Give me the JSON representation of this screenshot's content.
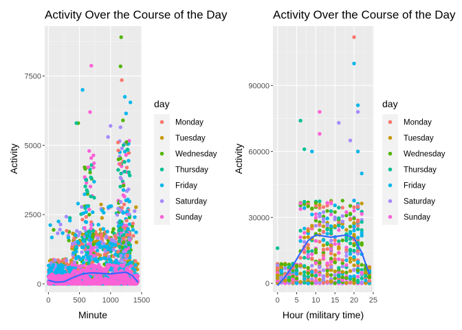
{
  "chart_data": [
    {
      "type": "scatter",
      "title": "Activity Over the Course of the Day",
      "xlabel": "Minute",
      "ylabel": "Activity",
      "xlim": [
        -60,
        1500
      ],
      "ylim": [
        -300,
        9300
      ],
      "xticks": [
        0,
        500,
        1000,
        1500
      ],
      "xtick_labels": [
        "0",
        "500",
        "1000",
        "1500"
      ],
      "yticks": [
        0,
        2500,
        5000,
        7500
      ],
      "ytick_labels": [
        "0",
        "2500",
        "5000",
        "7500"
      ],
      "grid": true,
      "legend": {
        "title": "day",
        "placement": "right",
        "entries": [
          "Monday",
          "Tuesday",
          "Wednesday",
          "Thursday",
          "Friday",
          "Saturday",
          "Sunday"
        ]
      },
      "colors": [
        "#F8766D",
        "#C49A00",
        "#53B400",
        "#00C094",
        "#00B6EB",
        "#A58AFF",
        "#FB61D7"
      ],
      "smooth_color": "#3366FF",
      "outliers": [
        {
          "x": 1170,
          "y": 8900,
          "day": "Wednesday"
        },
        {
          "x": 690,
          "y": 7870,
          "day": "Sunday"
        },
        {
          "x": 1160,
          "y": 7850,
          "day": "Wednesday"
        },
        {
          "x": 1180,
          "y": 7350,
          "day": "Monday"
        },
        {
          "x": 550,
          "y": 7000,
          "day": "Friday"
        },
        {
          "x": 1230,
          "y": 6750,
          "day": "Friday"
        },
        {
          "x": 1320,
          "y": 6550,
          "day": "Friday"
        },
        {
          "x": 670,
          "y": 6200,
          "day": "Sunday"
        },
        {
          "x": 1250,
          "y": 6150,
          "day": "Friday"
        },
        {
          "x": 1000,
          "y": 5700,
          "day": "Saturday"
        },
        {
          "x": 480,
          "y": 5800,
          "day": "Wednesday"
        },
        {
          "x": 450,
          "y": 5800,
          "day": "Thursday"
        },
        {
          "x": 1160,
          "y": 5650,
          "day": "Saturday"
        },
        {
          "x": 960,
          "y": 5300,
          "day": "Saturday"
        },
        {
          "x": 1200,
          "y": 5900,
          "day": "Wednesday"
        }
      ],
      "smooth": [
        {
          "x": 0,
          "y": 130
        },
        {
          "x": 120,
          "y": 60
        },
        {
          "x": 250,
          "y": 80
        },
        {
          "x": 400,
          "y": 230
        },
        {
          "x": 550,
          "y": 360
        },
        {
          "x": 700,
          "y": 400
        },
        {
          "x": 850,
          "y": 380
        },
        {
          "x": 1000,
          "y": 360
        },
        {
          "x": 1150,
          "y": 400
        },
        {
          "x": 1250,
          "y": 420
        },
        {
          "x": 1350,
          "y": 300
        },
        {
          "x": 1440,
          "y": 60
        }
      ]
    },
    {
      "type": "scatter",
      "title": "Activity Over the Course of the Day",
      "xlabel": "Hour (military time)",
      "ylabel": "Activity",
      "xlim": [
        -1.2,
        25.2
      ],
      "ylim": [
        -4000,
        117000
      ],
      "xticks": [
        0,
        5,
        10,
        15,
        20,
        25
      ],
      "xtick_labels": [
        "0",
        "5",
        "10",
        "15",
        "20",
        "25"
      ],
      "yticks": [
        0,
        30000,
        60000,
        90000
      ],
      "ytick_labels": [
        "0",
        "30000",
        "60000",
        "90000"
      ],
      "grid": true,
      "legend": {
        "title": "day",
        "placement": "right",
        "entries": [
          "Monday",
          "Tuesday",
          "Wednesday",
          "Thursday",
          "Friday",
          "Saturday",
          "Sunday"
        ]
      },
      "colors": [
        "#F8766D",
        "#C49A00",
        "#53B400",
        "#00C094",
        "#00B6EB",
        "#A58AFF",
        "#FB61D7"
      ],
      "smooth_color": "#3366FF",
      "outliers": [
        {
          "x": 20,
          "y": 112000,
          "day": "Monday"
        },
        {
          "x": 20,
          "y": 100000,
          "day": "Friday"
        },
        {
          "x": 21,
          "y": 81000,
          "day": "Friday"
        },
        {
          "x": 11,
          "y": 78000,
          "day": "Sunday"
        },
        {
          "x": 6,
          "y": 74000,
          "day": "Thursday"
        },
        {
          "x": 16,
          "y": 73000,
          "day": "Saturday"
        },
        {
          "x": 21,
          "y": 78000,
          "day": "Saturday"
        },
        {
          "x": 11,
          "y": 68000,
          "day": "Sunday"
        },
        {
          "x": 7,
          "y": 61000,
          "day": "Thursday"
        },
        {
          "x": 19,
          "y": 65000,
          "day": "Saturday"
        },
        {
          "x": 21,
          "y": 60000,
          "day": "Friday"
        },
        {
          "x": 9,
          "y": 60000,
          "day": "Friday"
        },
        {
          "x": 22,
          "y": 50000,
          "day": "Friday"
        },
        {
          "x": 0,
          "y": 16000,
          "day": "Thursday"
        }
      ],
      "smooth": [
        {
          "x": 0,
          "y": -1000
        },
        {
          "x": 2,
          "y": 3000
        },
        {
          "x": 4,
          "y": 8000
        },
        {
          "x": 6,
          "y": 14000
        },
        {
          "x": 8,
          "y": 19500
        },
        {
          "x": 10,
          "y": 22000
        },
        {
          "x": 12,
          "y": 21500
        },
        {
          "x": 14,
          "y": 21000
        },
        {
          "x": 16,
          "y": 21500
        },
        {
          "x": 18,
          "y": 22000
        },
        {
          "x": 20,
          "y": 20500
        },
        {
          "x": 22,
          "y": 14000
        },
        {
          "x": 24,
          "y": 4000
        }
      ]
    }
  ]
}
